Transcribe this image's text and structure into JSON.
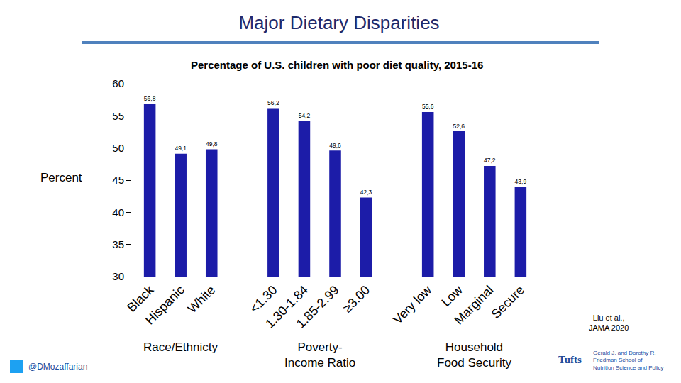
{
  "chart_data": {
    "type": "bar",
    "title": "Major Dietary Disparities",
    "subtitle": "Percentage of U.S. children with poor diet quality, 2015-16",
    "y_label": "Percent",
    "categories": [
      "Black",
      "Hispanic",
      "White",
      null,
      "<1.30",
      "1.30-1.84",
      "1.85-2.99",
      "≥3.00",
      null,
      "Very low",
      "Low",
      "Marginal",
      "Secure"
    ],
    "values": [
      56.8,
      49.1,
      49.8,
      null,
      56.2,
      54.2,
      49.6,
      42.3,
      null,
      55.6,
      52.6,
      47.2,
      43.9
    ],
    "value_labels": [
      "56,8",
      "49,1",
      "49,8",
      null,
      "56,2",
      "54,2",
      "49,6",
      "42,3",
      null,
      "55,6",
      "52,6",
      "47,2",
      "43,9"
    ],
    "color": "#1c1ca8",
    "ylim": [
      30,
      60
    ],
    "yticks": [
      30,
      35,
      40,
      45,
      50,
      55,
      60
    ],
    "grid": false,
    "data_labels": true,
    "groups": [
      {
        "label": [
          "Race/Ethnicty"
        ],
        "categories": [
          "Black",
          "Hispanic",
          "White"
        ]
      },
      {
        "label": [
          "Poverty-",
          "Income Ratio"
        ],
        "categories": [
          "<1.30",
          "1.30-1.84",
          "1.85-2.99",
          "≥3.00"
        ]
      },
      {
        "label": [
          "Household",
          "Food Security"
        ],
        "categories": [
          "Very low",
          "Low",
          "Marginal",
          "Secure"
        ]
      }
    ],
    "source": [
      "Liu et al.,",
      "JAMA 2020"
    ],
    "handle": "@DMozaffarian",
    "logo": {
      "name": "Tufts",
      "lines": [
        "Gerald J. and Dorothy R.",
        "Friedman School of",
        "Nutrition Science and Policy"
      ]
    }
  }
}
